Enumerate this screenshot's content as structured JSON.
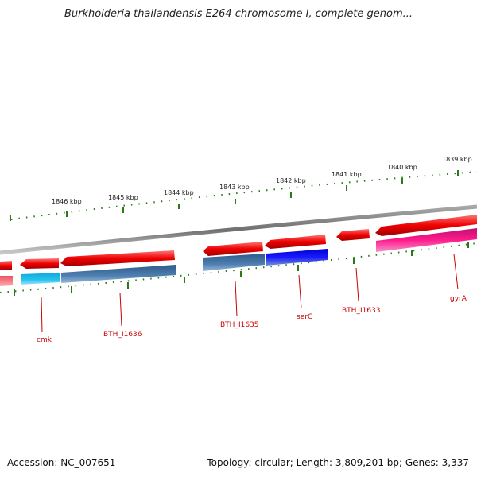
{
  "title": "Burkholderia thailandensis E264 chromosome I, complete genom...",
  "footer": {
    "accession": "Accession: NC_007651",
    "topology": "Topology: circular; Length: 3,809,201 bp; Genes: 3,337"
  },
  "kbp_labels": [
    "1846 kbp",
    "1845 kbp",
    "1844 kbp",
    "1843 kbp",
    "1842 kbp",
    "1841 kbp",
    "1840 kbp",
    "1839 kbp"
  ],
  "gene_labels": [
    "cmk",
    "BTH_I1636",
    "BTH_I1635",
    "serC",
    "BTH_I1633",
    "gyrA"
  ],
  "colors": {
    "backbone": "#808080",
    "gene_red": "#ee0000",
    "cds_blue": "#3f6fa0",
    "cds_cyan": "#19b8e8",
    "cds_darkblue": "#0000e0",
    "cds_magenta": "#ee1188",
    "cds_pink": "#f08080",
    "tick_green": "#2a7a1a",
    "label_red": "#cc0000"
  }
}
